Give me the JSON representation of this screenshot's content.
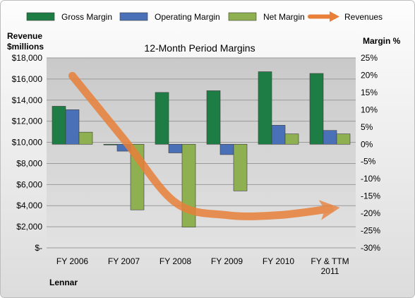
{
  "chart_data": {
    "type": "bar",
    "title": "12-Month Period Margins",
    "company": "Lennar",
    "categories": [
      "FY 2006",
      "FY 2007",
      "FY 2008",
      "FY 2009",
      "FY 2010",
      [
        "FY & TTM",
        "2011"
      ]
    ],
    "left_axis": {
      "title": [
        "Revenue",
        "$millions"
      ],
      "min": 0,
      "max": 18000,
      "step": 2000,
      "tick_labels": [
        "$-",
        "$2,000",
        "$4,000",
        "$6,000",
        "$8,000",
        "$10,000",
        "$12,000",
        "$14,000",
        "$16,000",
        "$18,000"
      ]
    },
    "right_axis": {
      "title": "Margin %",
      "min": -30,
      "max": 25,
      "step": 5,
      "tick_labels": [
        "-30%",
        "-25%",
        "-20%",
        "-15%",
        "-10%",
        "-5%",
        "0%",
        "5%",
        "10%",
        "15%",
        "20%",
        "25%"
      ]
    },
    "series": [
      {
        "name": "Gross Margin",
        "axis": "right",
        "kind": "bar",
        "color": "#1e7d45",
        "values": [
          11,
          0,
          15,
          15.5,
          21,
          20.5
        ]
      },
      {
        "name": "Operating Margin",
        "axis": "right",
        "kind": "bar",
        "color": "#4a71b8",
        "values": [
          10,
          -2,
          -2.5,
          -3,
          5.5,
          4
        ]
      },
      {
        "name": "Net Margin",
        "axis": "right",
        "kind": "bar",
        "color": "#8fb050",
        "values": [
          3.5,
          -19,
          -24,
          -13.5,
          3,
          3
        ]
      },
      {
        "name": "Revenues",
        "axis": "left",
        "kind": "line",
        "color": "#e8803a",
        "values": [
          16300,
          10300,
          4300,
          3100,
          3100,
          3700
        ]
      }
    ],
    "grid": "horizontal",
    "legend_position": "top"
  }
}
